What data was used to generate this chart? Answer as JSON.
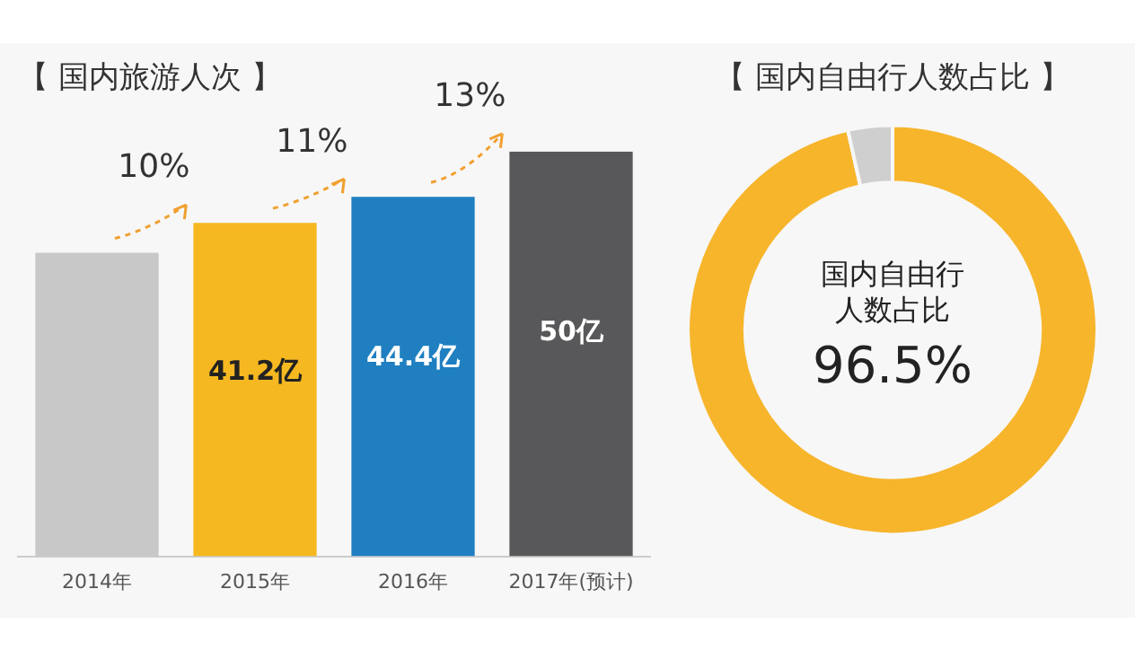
{
  "chart_data": [
    {
      "type": "bar",
      "title": "【 国内旅游人次 】",
      "categories": [
        "2014年",
        "2015年",
        "2016年",
        "2017年(预计)"
      ],
      "values": [
        37.5,
        41.2,
        44.4,
        50
      ],
      "colors": [
        "#c8c8c8",
        "#f5b820",
        "#1f7fc1",
        "#58585a"
      ],
      "value_labels": [
        null,
        "41.2亿",
        "44.4亿",
        "50亿"
      ],
      "tick_labels": "x",
      "annotations": [
        "10%",
        "11%",
        "13%"
      ],
      "grid": false,
      "legend": false
    },
    {
      "type": "donut",
      "title": "【 国内自由行人数占比 】",
      "categories": [
        null,
        null
      ],
      "values": [
        96.5,
        3.5
      ],
      "colors": [
        "#f7b52c",
        "#cfcfcf"
      ],
      "value_labels": [
        "96.5%",
        null
      ],
      "annotations": [
        "国内自由行人数占比"
      ],
      "legend": false
    }
  ]
}
